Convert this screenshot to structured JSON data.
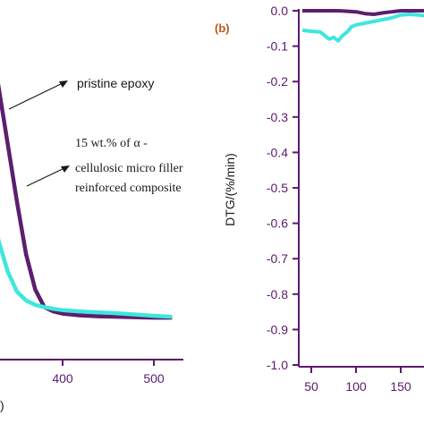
{
  "colors": {
    "purple": "#5b1f6e",
    "cyan": "#3fe6de",
    "axis": "#5a1a6e",
    "label_b": "#b35a1a"
  },
  "chart_data": [
    {
      "type": "line",
      "title": "",
      "xlabel": "",
      "ylabel": "",
      "xlim": [
        300,
        520
      ],
      "xticks": [
        "400",
        "500"
      ],
      "annotations": {
        "pristine": "pristine epoxy",
        "composite_line1": "15 wt.% of α -",
        "composite_line2": "cellulosic micro filler",
        "composite_line3": "reinforced composite"
      },
      "axis_title_fragment": ")",
      "series": [
        {
          "color": "#5b1f6e",
          "x": [
            300,
            310,
            320,
            330,
            340,
            350,
            360,
            370,
            380,
            390,
            400,
            420,
            440,
            460,
            480,
            500,
            520
          ],
          "y": [
            85,
            78,
            66,
            53,
            40,
            27,
            15,
            7,
            3,
            2,
            1.5,
            1.1,
            0.9,
            0.8,
            0.7,
            0.6,
            0.6
          ]
        },
        {
          "color": "#3fe6de",
          "x": [
            300,
            305,
            310,
            320,
            330,
            340,
            350,
            360,
            370,
            380,
            390,
            400,
            420,
            440,
            460,
            480,
            500,
            520
          ],
          "y": [
            55,
            48,
            40,
            28,
            18,
            11,
            6.5,
            4.5,
            3.5,
            3,
            2.6,
            2.3,
            2,
            1.8,
            1.6,
            1.3,
            1,
            0.8
          ]
        }
      ]
    },
    {
      "type": "line",
      "panel_label": "(b)",
      "ylabel": "DTG/(%/min)",
      "xlabel": "",
      "ylim": [
        -1.0,
        0.0
      ],
      "yticks": [
        "0.0",
        "-0.1",
        "-0.2",
        "-0.3",
        "-0.4",
        "-0.5",
        "-0.6",
        "-0.7",
        "-0.8",
        "-0.9",
        "-1.0"
      ],
      "xticks": [
        "50",
        "100",
        "150"
      ],
      "xlim": [
        40,
        180
      ],
      "series": [
        {
          "color": "#5b1f6e",
          "x": [
            40,
            60,
            80,
            100,
            110,
            120,
            130,
            140,
            150,
            160,
            170,
            180
          ],
          "y": [
            0,
            0,
            0,
            -0.003,
            -0.008,
            -0.01,
            -0.006,
            -0.003,
            0,
            0,
            0,
            0
          ]
        },
        {
          "color": "#3fe6de",
          "x": [
            40,
            50,
            60,
            65,
            70,
            75,
            80,
            85,
            90,
            95,
            100,
            110,
            120,
            130,
            140,
            150,
            160,
            170,
            180
          ],
          "y": [
            -0.055,
            -0.058,
            -0.06,
            -0.07,
            -0.08,
            -0.075,
            -0.085,
            -0.07,
            -0.06,
            -0.045,
            -0.04,
            -0.035,
            -0.03,
            -0.025,
            -0.02,
            -0.012,
            -0.01,
            -0.012,
            -0.015
          ]
        }
      ]
    }
  ]
}
